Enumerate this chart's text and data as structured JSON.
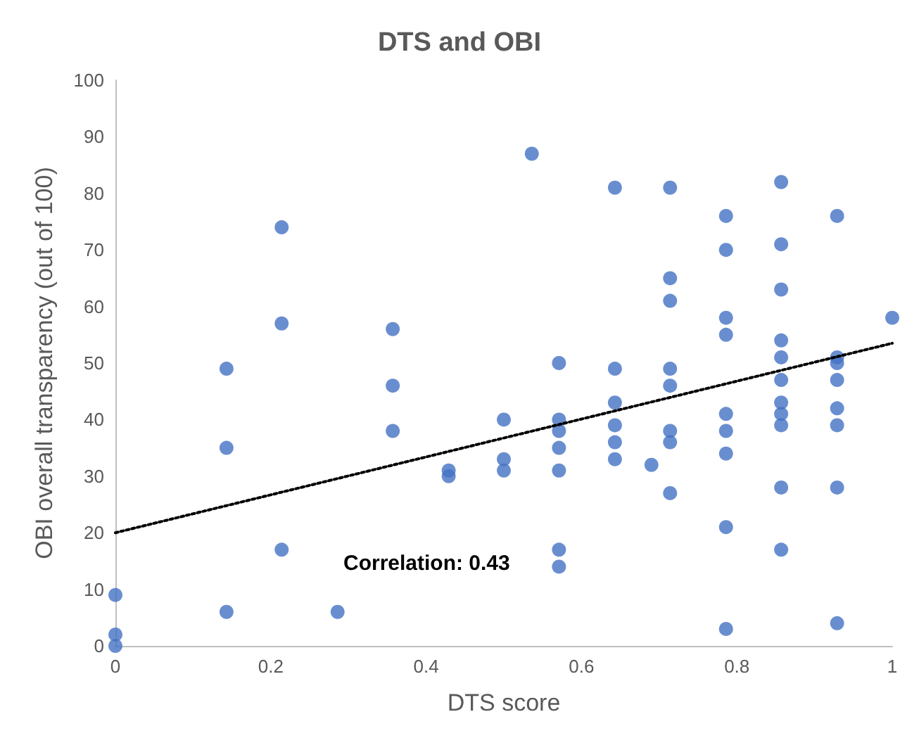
{
  "chart_data": {
    "type": "scatter",
    "title": "DTS and OBI",
    "xlabel": "DTS score",
    "ylabel": "OBI overall transparency (out of 100)",
    "xlim": [
      0,
      1
    ],
    "xticks": [
      0,
      0.2,
      0.4,
      0.6,
      0.8,
      1
    ],
    "ylim": [
      0,
      100
    ],
    "yticks": [
      0,
      10,
      20,
      30,
      40,
      50,
      60,
      70,
      80,
      90,
      100
    ],
    "grid": false,
    "marker": "circle",
    "annotations": [
      "Correlation: 0.43"
    ],
    "series": [
      {
        "color": "#4472c4",
        "x": [
          0,
          0,
          0,
          0.143,
          0.143,
          0.143,
          0.214,
          0.214,
          0.214,
          0.286,
          0.357,
          0.357,
          0.357,
          0.429,
          0.429,
          0.5,
          0.5,
          0.5,
          0.536,
          0.571,
          0.571,
          0.571,
          0.571,
          0.571,
          0.571,
          0.571,
          0.643,
          0.643,
          0.643,
          0.643,
          0.643,
          0.643,
          0.69,
          0.714,
          0.714,
          0.714,
          0.714,
          0.714,
          0.714,
          0.714,
          0.714,
          0.786,
          0.786,
          0.786,
          0.786,
          0.786,
          0.786,
          0.786,
          0.786,
          0.786,
          0.857,
          0.857,
          0.857,
          0.857,
          0.857,
          0.857,
          0.857,
          0.857,
          0.857,
          0.857,
          0.857,
          0.929,
          0.929,
          0.929,
          0.929,
          0.929,
          0.929,
          0.929,
          0.929,
          1
        ],
        "values": [
          9,
          2,
          0,
          49,
          35,
          6,
          74,
          57,
          17,
          6,
          56,
          46,
          38,
          31,
          30,
          40,
          33,
          31,
          87,
          50,
          40,
          38,
          35,
          31,
          17,
          14,
          81,
          49,
          43,
          39,
          36,
          33,
          32,
          81,
          65,
          61,
          49,
          46,
          38,
          36,
          27,
          76,
          70,
          58,
          55,
          41,
          38,
          34,
          21,
          3,
          82,
          71,
          63,
          54,
          51,
          47,
          43,
          41,
          39,
          28,
          17,
          76,
          51,
          50,
          47,
          42,
          39,
          28,
          4,
          58
        ]
      },
      {
        "type": "line",
        "color": "#000000",
        "line_style": "dotted",
        "marker": "none",
        "x": [
          0,
          1
        ],
        "values": [
          20,
          53.5
        ]
      }
    ]
  }
}
